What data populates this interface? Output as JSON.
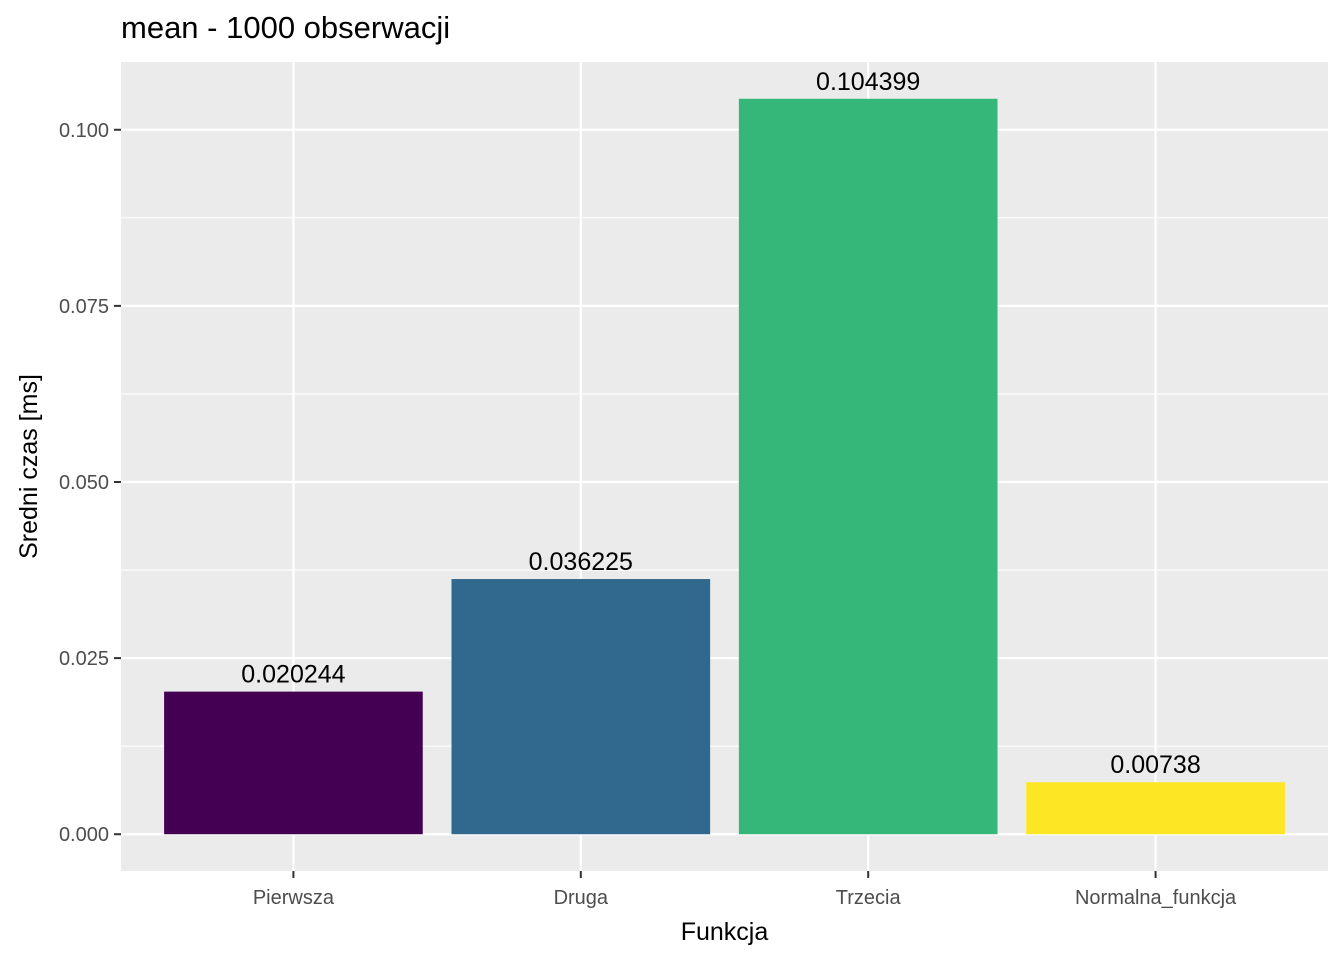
{
  "chart_data": {
    "type": "bar",
    "title": "mean - 1000 obserwacji",
    "xlabel": "Funkcja",
    "ylabel": "Sredni czas [ms]",
    "categories": [
      "Pierwsza",
      "Druga",
      "Trzecia",
      "Normalna_funkcja"
    ],
    "values": [
      0.020244,
      0.036225,
      0.104399,
      0.00738
    ],
    "data_labels": [
      "0.020244",
      "0.036225",
      "0.104399",
      "0.00738"
    ],
    "colors": [
      "#440154",
      "#31688E",
      "#35B779",
      "#FDE725"
    ],
    "ylim": [
      -0.00522,
      0.10962
    ],
    "yticks": [
      0,
      0.025,
      0.05,
      0.075,
      0.1
    ],
    "ytick_labels": [
      "0.000",
      "0.025",
      "0.050",
      "0.075",
      "0.100"
    ],
    "grid": true,
    "legend": "none",
    "panel_color": "#EBEBEB"
  }
}
